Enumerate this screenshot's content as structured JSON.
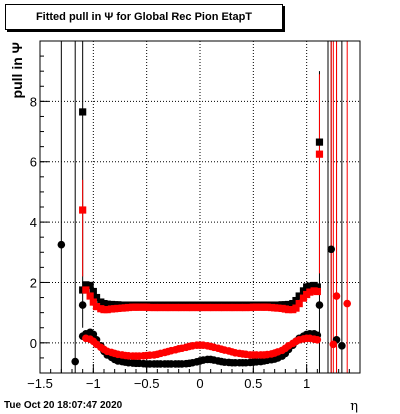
{
  "title": "Fitted pull in  Ψ  for Global Rec Pion EtapT",
  "timestamp": "Tue Oct 20 18:07:47 2020",
  "chart_data": {
    "type": "scatter",
    "title": "Fitted pull in  Ψ  for Global Rec Pion EtapT",
    "xlabel": "η",
    "ylabel": "pull in  Ψ",
    "xlim": [
      -1.5,
      1.5
    ],
    "ylim": [
      -1.0,
      10.0
    ],
    "x_ticks": [
      -1.5,
      -1,
      -0.5,
      0,
      0.5,
      1
    ],
    "x_tick_labels": [
      "−1.5",
      "−1",
      "−0.5",
      "0",
      "0.5",
      "1"
    ],
    "y_ticks": [
      0,
      2,
      4,
      6,
      8
    ],
    "y_tick_labels": [
      "0",
      "2",
      "4",
      "6",
      "8"
    ],
    "grid": true,
    "series": [
      {
        "color": "#000000",
        "marker": "square",
        "points": [
          [
            -1.1,
            7.65
          ],
          [
            -1.1,
            1.75
          ],
          [
            -1.07,
            1.92
          ],
          [
            -1.03,
            1.9
          ],
          [
            -1.0,
            1.7
          ],
          [
            -0.97,
            1.5
          ],
          [
            -0.93,
            1.35
          ],
          [
            -0.9,
            1.3
          ],
          [
            -0.87,
            1.28
          ],
          [
            -0.83,
            1.27
          ],
          [
            -0.8,
            1.26
          ],
          [
            -0.77,
            1.26
          ],
          [
            -0.73,
            1.25
          ],
          [
            -0.7,
            1.25
          ],
          [
            -0.67,
            1.25
          ],
          [
            -0.63,
            1.25
          ],
          [
            -0.6,
            1.25
          ],
          [
            -0.57,
            1.25
          ],
          [
            -0.53,
            1.25
          ],
          [
            -0.5,
            1.25
          ],
          [
            -0.47,
            1.25
          ],
          [
            -0.43,
            1.25
          ],
          [
            -0.4,
            1.25
          ],
          [
            -0.37,
            1.25
          ],
          [
            -0.33,
            1.25
          ],
          [
            -0.3,
            1.25
          ],
          [
            -0.27,
            1.25
          ],
          [
            -0.23,
            1.25
          ],
          [
            -0.2,
            1.25
          ],
          [
            -0.17,
            1.25
          ],
          [
            -0.13,
            1.25
          ],
          [
            -0.1,
            1.25
          ],
          [
            -0.07,
            1.25
          ],
          [
            -0.03,
            1.25
          ],
          [
            0.0,
            1.25
          ],
          [
            0.03,
            1.25
          ],
          [
            0.07,
            1.25
          ],
          [
            0.1,
            1.25
          ],
          [
            0.13,
            1.25
          ],
          [
            0.17,
            1.25
          ],
          [
            0.2,
            1.25
          ],
          [
            0.23,
            1.25
          ],
          [
            0.27,
            1.25
          ],
          [
            0.3,
            1.25
          ],
          [
            0.33,
            1.25
          ],
          [
            0.37,
            1.25
          ],
          [
            0.4,
            1.25
          ],
          [
            0.43,
            1.25
          ],
          [
            0.47,
            1.25
          ],
          [
            0.5,
            1.25
          ],
          [
            0.53,
            1.25
          ],
          [
            0.57,
            1.25
          ],
          [
            0.6,
            1.25
          ],
          [
            0.63,
            1.25
          ],
          [
            0.67,
            1.25
          ],
          [
            0.7,
            1.25
          ],
          [
            0.73,
            1.25
          ],
          [
            0.77,
            1.26
          ],
          [
            0.8,
            1.26
          ],
          [
            0.83,
            1.27
          ],
          [
            0.87,
            1.3
          ],
          [
            0.9,
            1.4
          ],
          [
            0.93,
            1.55
          ],
          [
            0.97,
            1.72
          ],
          [
            1.0,
            1.85
          ],
          [
            1.03,
            1.88
          ],
          [
            1.07,
            1.9
          ],
          [
            1.1,
            1.85
          ],
          [
            1.12,
            6.65
          ]
        ]
      },
      {
        "color": "#000000",
        "marker": "circle",
        "points": [
          [
            -1.3,
            3.25
          ],
          [
            -1.17,
            -0.62
          ],
          [
            -1.1,
            1.25
          ],
          [
            -1.1,
            0.22
          ],
          [
            -1.07,
            0.3
          ],
          [
            -1.03,
            0.35
          ],
          [
            -1.0,
            0.28
          ],
          [
            -0.97,
            0.1
          ],
          [
            -0.93,
            -0.1
          ],
          [
            -0.9,
            -0.28
          ],
          [
            -0.87,
            -0.4
          ],
          [
            -0.83,
            -0.48
          ],
          [
            -0.8,
            -0.55
          ],
          [
            -0.77,
            -0.6
          ],
          [
            -0.73,
            -0.62
          ],
          [
            -0.7,
            -0.64
          ],
          [
            -0.67,
            -0.66
          ],
          [
            -0.63,
            -0.67
          ],
          [
            -0.6,
            -0.68
          ],
          [
            -0.57,
            -0.68
          ],
          [
            -0.53,
            -0.69
          ],
          [
            -0.5,
            -0.7
          ],
          [
            -0.47,
            -0.7
          ],
          [
            -0.43,
            -0.7
          ],
          [
            -0.4,
            -0.7
          ],
          [
            -0.37,
            -0.7
          ],
          [
            -0.33,
            -0.7
          ],
          [
            -0.3,
            -0.7
          ],
          [
            -0.27,
            -0.7
          ],
          [
            -0.23,
            -0.7
          ],
          [
            -0.2,
            -0.7
          ],
          [
            -0.17,
            -0.7
          ],
          [
            -0.13,
            -0.69
          ],
          [
            -0.1,
            -0.68
          ],
          [
            -0.07,
            -0.66
          ],
          [
            -0.03,
            -0.63
          ],
          [
            0.0,
            -0.6
          ],
          [
            0.03,
            -0.57
          ],
          [
            0.07,
            -0.55
          ],
          [
            0.1,
            -0.55
          ],
          [
            0.13,
            -0.57
          ],
          [
            0.17,
            -0.6
          ],
          [
            0.2,
            -0.62
          ],
          [
            0.23,
            -0.64
          ],
          [
            0.27,
            -0.65
          ],
          [
            0.3,
            -0.66
          ],
          [
            0.33,
            -0.66
          ],
          [
            0.37,
            -0.66
          ],
          [
            0.4,
            -0.66
          ],
          [
            0.43,
            -0.66
          ],
          [
            0.47,
            -0.65
          ],
          [
            0.5,
            -0.64
          ],
          [
            0.53,
            -0.63
          ],
          [
            0.57,
            -0.62
          ],
          [
            0.6,
            -0.6
          ],
          [
            0.63,
            -0.58
          ],
          [
            0.67,
            -0.56
          ],
          [
            0.7,
            -0.54
          ],
          [
            0.73,
            -0.5
          ],
          [
            0.77,
            -0.44
          ],
          [
            0.8,
            -0.35
          ],
          [
            0.83,
            -0.22
          ],
          [
            0.87,
            -0.08
          ],
          [
            0.9,
            0.05
          ],
          [
            0.93,
            0.15
          ],
          [
            0.97,
            0.22
          ],
          [
            1.0,
            0.28
          ],
          [
            1.03,
            0.3
          ],
          [
            1.07,
            0.3
          ],
          [
            1.1,
            0.25
          ],
          [
            1.12,
            1.25
          ],
          [
            1.23,
            3.1
          ],
          [
            1.28,
            0.1
          ],
          [
            1.33,
            -0.1
          ]
        ]
      },
      {
        "color": "#ff0000",
        "marker": "square",
        "points": [
          [
            -1.1,
            4.4
          ],
          [
            -1.07,
            1.75
          ],
          [
            -1.03,
            1.55
          ],
          [
            -1.0,
            1.35
          ],
          [
            -0.97,
            1.2
          ],
          [
            -0.93,
            1.13
          ],
          [
            -0.9,
            1.1
          ],
          [
            -0.87,
            1.1
          ],
          [
            -0.83,
            1.12
          ],
          [
            -0.8,
            1.13
          ],
          [
            -0.77,
            1.14
          ],
          [
            -0.73,
            1.15
          ],
          [
            -0.7,
            1.16
          ],
          [
            -0.67,
            1.17
          ],
          [
            -0.63,
            1.18
          ],
          [
            -0.6,
            1.18
          ],
          [
            -0.57,
            1.18
          ],
          [
            -0.53,
            1.18
          ],
          [
            -0.5,
            1.18
          ],
          [
            -0.47,
            1.17
          ],
          [
            -0.43,
            1.17
          ],
          [
            -0.4,
            1.17
          ],
          [
            -0.37,
            1.17
          ],
          [
            -0.33,
            1.17
          ],
          [
            -0.3,
            1.17
          ],
          [
            -0.27,
            1.17
          ],
          [
            -0.23,
            1.17
          ],
          [
            -0.2,
            1.17
          ],
          [
            -0.17,
            1.17
          ],
          [
            -0.13,
            1.17
          ],
          [
            -0.1,
            1.17
          ],
          [
            -0.07,
            1.17
          ],
          [
            -0.03,
            1.17
          ],
          [
            0.0,
            1.17
          ],
          [
            0.03,
            1.17
          ],
          [
            0.07,
            1.17
          ],
          [
            0.1,
            1.17
          ],
          [
            0.13,
            1.17
          ],
          [
            0.17,
            1.17
          ],
          [
            0.2,
            1.17
          ],
          [
            0.23,
            1.17
          ],
          [
            0.27,
            1.17
          ],
          [
            0.3,
            1.17
          ],
          [
            0.33,
            1.17
          ],
          [
            0.37,
            1.17
          ],
          [
            0.4,
            1.17
          ],
          [
            0.43,
            1.17
          ],
          [
            0.47,
            1.17
          ],
          [
            0.5,
            1.18
          ],
          [
            0.53,
            1.18
          ],
          [
            0.57,
            1.18
          ],
          [
            0.6,
            1.18
          ],
          [
            0.63,
            1.18
          ],
          [
            0.67,
            1.17
          ],
          [
            0.7,
            1.16
          ],
          [
            0.73,
            1.15
          ],
          [
            0.77,
            1.14
          ],
          [
            0.8,
            1.12
          ],
          [
            0.83,
            1.1
          ],
          [
            0.87,
            1.1
          ],
          [
            0.9,
            1.15
          ],
          [
            0.93,
            1.3
          ],
          [
            0.97,
            1.48
          ],
          [
            1.0,
            1.6
          ],
          [
            1.03,
            1.68
          ],
          [
            1.07,
            1.72
          ],
          [
            1.1,
            1.7
          ],
          [
            1.12,
            6.25
          ]
        ]
      },
      {
        "color": "#ff0000",
        "marker": "circle",
        "points": [
          [
            -1.07,
            0.15
          ],
          [
            -1.03,
            0.12
          ],
          [
            -1.0,
            0.05
          ],
          [
            -0.97,
            -0.05
          ],
          [
            -0.93,
            -0.15
          ],
          [
            -0.9,
            -0.22
          ],
          [
            -0.87,
            -0.28
          ],
          [
            -0.83,
            -0.32
          ],
          [
            -0.8,
            -0.35
          ],
          [
            -0.77,
            -0.38
          ],
          [
            -0.73,
            -0.4
          ],
          [
            -0.7,
            -0.42
          ],
          [
            -0.67,
            -0.43
          ],
          [
            -0.63,
            -0.44
          ],
          [
            -0.6,
            -0.44
          ],
          [
            -0.57,
            -0.44
          ],
          [
            -0.53,
            -0.43
          ],
          [
            -0.5,
            -0.42
          ],
          [
            -0.47,
            -0.41
          ],
          [
            -0.43,
            -0.4
          ],
          [
            -0.4,
            -0.38
          ],
          [
            -0.37,
            -0.35
          ],
          [
            -0.33,
            -0.32
          ],
          [
            -0.3,
            -0.29
          ],
          [
            -0.27,
            -0.26
          ],
          [
            -0.23,
            -0.23
          ],
          [
            -0.2,
            -0.2
          ],
          [
            -0.17,
            -0.18
          ],
          [
            -0.13,
            -0.15
          ],
          [
            -0.1,
            -0.12
          ],
          [
            -0.07,
            -0.1
          ],
          [
            -0.03,
            -0.08
          ],
          [
            0.0,
            -0.08
          ],
          [
            0.03,
            -0.08
          ],
          [
            0.07,
            -0.1
          ],
          [
            0.1,
            -0.12
          ],
          [
            0.13,
            -0.15
          ],
          [
            0.17,
            -0.18
          ],
          [
            0.2,
            -0.21
          ],
          [
            0.23,
            -0.24
          ],
          [
            0.27,
            -0.27
          ],
          [
            0.3,
            -0.3
          ],
          [
            0.33,
            -0.33
          ],
          [
            0.37,
            -0.35
          ],
          [
            0.4,
            -0.37
          ],
          [
            0.43,
            -0.38
          ],
          [
            0.47,
            -0.4
          ],
          [
            0.5,
            -0.4
          ],
          [
            0.53,
            -0.4
          ],
          [
            0.57,
            -0.4
          ],
          [
            0.6,
            -0.4
          ],
          [
            0.63,
            -0.39
          ],
          [
            0.67,
            -0.37
          ],
          [
            0.7,
            -0.34
          ],
          [
            0.73,
            -0.3
          ],
          [
            0.77,
            -0.25
          ],
          [
            0.8,
            -0.18
          ],
          [
            0.83,
            -0.1
          ],
          [
            0.87,
            -0.02
          ],
          [
            0.9,
            0.05
          ],
          [
            0.93,
            0.1
          ],
          [
            0.97,
            0.13
          ],
          [
            1.0,
            0.15
          ],
          [
            1.03,
            0.15
          ],
          [
            1.07,
            0.12
          ],
          [
            1.1,
            0.1
          ],
          [
            1.25,
            -0.05
          ],
          [
            1.28,
            1.55
          ],
          [
            1.38,
            1.3
          ]
        ]
      }
    ],
    "error_bars": [
      {
        "color": "#000000",
        "x": -1.3,
        "low": -1.0,
        "high": 10.0
      },
      {
        "color": "#000000",
        "x": -1.17,
        "low": -1.0,
        "high": 10.0
      },
      {
        "color": "#000000",
        "x": -1.1,
        "low": 0.5,
        "high": 10.0
      },
      {
        "color": "#000000",
        "x": 1.12,
        "low": -1.0,
        "high": 9.0
      },
      {
        "color": "#000000",
        "x": 1.2,
        "low": -1.0,
        "high": 10.0
      },
      {
        "color": "#000000",
        "x": 1.23,
        "low": -1.0,
        "high": 10.0
      },
      {
        "color": "#000000",
        "x": 1.28,
        "low": -1.0,
        "high": 10.0
      },
      {
        "color": "#000000",
        "x": 1.33,
        "low": -1.0,
        "high": 10.0
      },
      {
        "color": "#ff0000",
        "x": -1.1,
        "low": 2.2,
        "high": 5.4
      },
      {
        "color": "#ff0000",
        "x": 1.12,
        "low": 2.3,
        "high": 8.9
      },
      {
        "color": "#ff0000",
        "x": 1.23,
        "low": -1.0,
        "high": 10.0
      },
      {
        "color": "#ff0000",
        "x": 1.25,
        "low": -1.0,
        "high": 10.0
      },
      {
        "color": "#ff0000",
        "x": 1.28,
        "low": -1.0,
        "high": 10.0
      },
      {
        "color": "#ff0000",
        "x": 1.38,
        "low": -1.0,
        "high": 10.0
      }
    ]
  }
}
